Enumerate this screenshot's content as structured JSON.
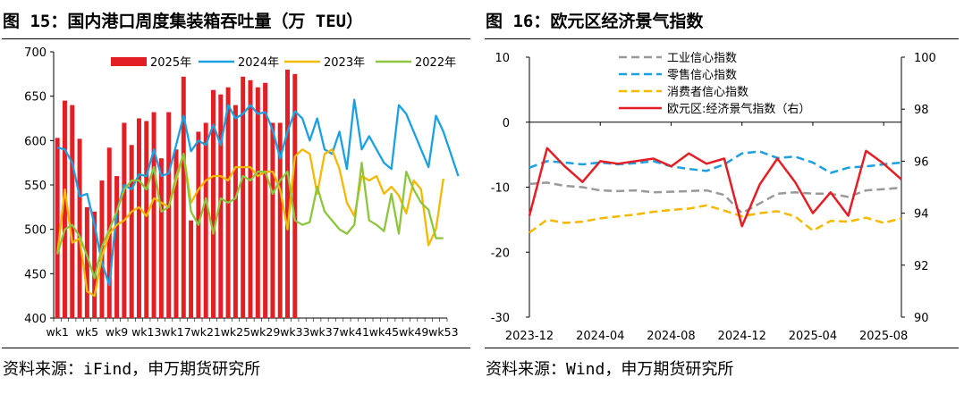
{
  "figure15": {
    "title": "图 15：国内港口周度集装箱吞吐量（万 TEU）",
    "source": "资料来源：iFind，申万期货研究所"
  },
  "figure16": {
    "title": "图 16：欧元区经济景气指数",
    "source": "资料来源：Wind，申万期货研究所"
  },
  "chart_data": [
    {
      "type": "bar",
      "title": "国内港口周度集装箱吞吐量（万 TEU）",
      "xlabel": "",
      "ylabel": "",
      "ylim": [
        400,
        700
      ],
      "yticks": [
        400,
        450,
        500,
        550,
        600,
        650,
        700
      ],
      "x_tick_labels": [
        "wk1",
        "wk5",
        "wk9",
        "wk13",
        "wk17",
        "wk21",
        "wk25",
        "wk29",
        "wk33",
        "wk37",
        "wk41",
        "wk45",
        "wk49",
        "wk53"
      ],
      "legend_position": "top",
      "grid": false,
      "colors": {
        "2025年": "#e31e24",
        "2024年": "#1ba1e2",
        "2023年": "#f5b800",
        "2022年": "#8cc63f"
      },
      "series": [
        {
          "name": "2025年",
          "kind": "bar",
          "values": [
            603,
            645,
            640,
            602,
            525,
            520,
            555,
            592,
            560,
            620,
            595,
            625,
            622,
            632,
            580,
            632,
            590,
            672,
            510,
            610,
            620,
            657,
            652,
            660,
            640,
            672,
            668,
            660,
            665,
            620,
            620,
            680,
            675
          ]
        },
        {
          "name": "2024年",
          "kind": "line",
          "values": [
            592,
            590,
            575,
            537,
            540,
            505,
            462,
            437,
            520,
            550,
            545,
            562,
            560,
            590,
            560,
            563,
            595,
            628,
            588,
            600,
            595,
            618,
            595,
            640,
            625,
            630,
            640,
            630,
            632,
            612,
            580,
            610,
            633,
            625,
            600,
            625,
            590,
            585,
            610,
            568,
            646,
            590,
            605,
            590,
            575,
            568,
            640,
            630,
            610,
            590,
            570,
            628,
            610,
            585,
            560
          ]
        },
        {
          "name": "2023年",
          "kind": "line",
          "values": [
            472,
            545,
            485,
            490,
            430,
            425,
            470,
            495,
            505,
            510,
            520,
            525,
            515,
            535,
            530,
            525,
            555,
            585,
            530,
            545,
            555,
            560,
            560,
            555,
            570,
            570,
            570,
            560,
            565,
            565,
            545,
            500,
            582,
            590,
            585,
            540,
            585,
            590,
            568,
            530,
            515,
            560,
            555,
            560,
            540,
            548,
            538,
            518,
            555,
            545,
            482,
            500,
            557
          ]
        },
        {
          "name": "2022年",
          "kind": "line",
          "values": [
            472,
            500,
            505,
            492,
            470,
            445,
            480,
            500,
            520,
            545,
            555,
            555,
            545,
            570,
            520,
            525,
            560,
            585,
            520,
            505,
            535,
            495,
            535,
            530,
            535,
            560,
            555,
            565,
            565,
            540,
            555,
            565,
            510,
            505,
            508,
            548,
            520,
            510,
            500,
            495,
            505,
            575,
            510,
            505,
            498,
            540,
            495,
            565,
            545,
            530,
            522,
            490,
            490
          ]
        }
      ]
    },
    {
      "type": "line",
      "title": "欧元区经济景气指数",
      "xlabel": "",
      "ylabel": "",
      "ylim_left": [
        -30,
        10
      ],
      "ylim_right": [
        90,
        100
      ],
      "yticks_left": [
        -30,
        -20,
        -10,
        0,
        10
      ],
      "yticks_right": [
        90,
        92,
        94,
        96,
        98,
        100
      ],
      "x_tick_labels": [
        "2023-12",
        "2024-04",
        "2024-08",
        "2024-12",
        "2025-04",
        "2025-08"
      ],
      "x_months": [
        "2023-12",
        "2024-01",
        "2024-02",
        "2024-03",
        "2024-04",
        "2024-05",
        "2024-06",
        "2024-07",
        "2024-08",
        "2024-09",
        "2024-10",
        "2024-11",
        "2024-12",
        "2025-01",
        "2025-02",
        "2025-03",
        "2025-04",
        "2025-05",
        "2025-06",
        "2025-07",
        "2025-08",
        "2025-09"
      ],
      "legend_position": "top-center",
      "grid": false,
      "colors": {
        "工业信心指数": "#999999",
        "零售信心指数": "#1ba1e2",
        "消费者信心指数": "#f5b800",
        "欧元区:经济景气指数（右）": "#e31e24"
      },
      "series": [
        {
          "name": "工业信心指数",
          "axis": "left",
          "style": "dashed",
          "values": [
            -9.5,
            -9.3,
            -9.8,
            -10.0,
            -10.5,
            -10.6,
            -10.5,
            -10.8,
            -10.7,
            -10.6,
            -10.5,
            -11.2,
            -14.0,
            -12.5,
            -11.0,
            -10.8,
            -11.0,
            -11.0,
            -11.5,
            -10.5,
            -10.3,
            -10.1
          ]
        },
        {
          "name": "零售信心指数",
          "axis": "left",
          "style": "dashed",
          "values": [
            -7.0,
            -6.0,
            -6.2,
            -6.5,
            -6.2,
            -6.5,
            -6.3,
            -6.0,
            -6.8,
            -7.2,
            -7.5,
            -6.5,
            -4.8,
            -4.5,
            -5.5,
            -5.3,
            -6.2,
            -7.8,
            -7.0,
            -6.8,
            -6.5,
            -6.2
          ]
        },
        {
          "name": "消费者信心指数",
          "axis": "left",
          "style": "dashed",
          "values": [
            -17.0,
            -15.0,
            -15.5,
            -15.3,
            -14.8,
            -14.5,
            -14.2,
            -13.8,
            -13.5,
            -13.3,
            -12.8,
            -13.6,
            -14.5,
            -14.0,
            -13.7,
            -14.5,
            -16.7,
            -15.2,
            -15.3,
            -14.7,
            -15.5,
            -14.8
          ]
        },
        {
          "name": "欧元区:经济景气指数（右）",
          "axis": "right",
          "style": "solid",
          "values": [
            93.9,
            96.5,
            95.8,
            95.2,
            96.0,
            95.9,
            96.0,
            96.1,
            95.8,
            96.3,
            95.9,
            96.1,
            93.5,
            95.1,
            96.1,
            95.2,
            94.0,
            94.8,
            93.9,
            96.4,
            95.9,
            95.3
          ]
        }
      ]
    }
  ]
}
